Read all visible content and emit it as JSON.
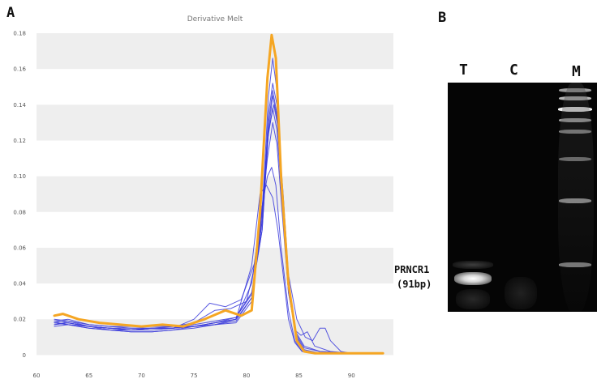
{
  "figure": {
    "panel_a_letter": "A",
    "panel_b_letter": "B"
  },
  "chart_data": {
    "type": "line",
    "title": "Derivative Melt",
    "xlabel": "",
    "ylabel": "",
    "xlim": [
      60,
      94
    ],
    "ylim": [
      -0.003,
      0.185
    ],
    "x_ticks": [
      "60",
      "65",
      "70",
      "75",
      "80",
      "85",
      "90"
    ],
    "x_tick_values": [
      60,
      65,
      70,
      75,
      80,
      85,
      90
    ],
    "y_ticks": [
      "0.18",
      "0.16",
      "0.14",
      "0.12",
      "0.10",
      "0.08",
      "0.06",
      "0.04",
      "0.02",
      "0"
    ],
    "y_tick_values": [
      0.18,
      0.16,
      0.14,
      0.12,
      0.1,
      0.08,
      0.06,
      0.04,
      0.02,
      0
    ],
    "grid": "alternating horizontal bands",
    "colors": {
      "samples": "#3b3bdc",
      "highlight": "#f5a623",
      "band": "#eeeeee"
    },
    "series": [
      {
        "color": "#f5a623",
        "highlight": true,
        "x": [
          61.7,
          62.5,
          64,
          66,
          68,
          70,
          72,
          74,
          76,
          78,
          79.5,
          80.5,
          81.3,
          82,
          82.4,
          82.8,
          83.3,
          84,
          84.8,
          85.5,
          86.5,
          88,
          90,
          93
        ],
        "y": [
          0.022,
          0.023,
          0.02,
          0.018,
          0.017,
          0.016,
          0.017,
          0.016,
          0.02,
          0.025,
          0.022,
          0.025,
          0.08,
          0.155,
          0.179,
          0.166,
          0.1,
          0.04,
          0.008,
          0.002,
          0.001,
          0.001,
          0.001,
          0.001
        ]
      },
      {
        "color": "#3b3bdc",
        "x": [
          61.7,
          63,
          65,
          67,
          69,
          71,
          73,
          75,
          77,
          79,
          80.5,
          81.5,
          82.1,
          82.5,
          82.9,
          83.4,
          84,
          84.7,
          85.5,
          87,
          90,
          93
        ],
        "y": [
          0.019,
          0.02,
          0.017,
          0.016,
          0.016,
          0.016,
          0.016,
          0.016,
          0.017,
          0.018,
          0.03,
          0.08,
          0.145,
          0.166,
          0.148,
          0.095,
          0.04,
          0.01,
          0.002,
          0.001,
          0.001,
          0.001
        ]
      },
      {
        "color": "#3b3bdc",
        "x": [
          61.7,
          63,
          65,
          67,
          69,
          71,
          73,
          75,
          77,
          79,
          80.5,
          81.5,
          82.1,
          82.5,
          82.9,
          83.4,
          84,
          84.7,
          85.5,
          87,
          90,
          93
        ],
        "y": [
          0.018,
          0.019,
          0.016,
          0.015,
          0.014,
          0.015,
          0.015,
          0.016,
          0.017,
          0.019,
          0.032,
          0.075,
          0.135,
          0.152,
          0.14,
          0.092,
          0.038,
          0.01,
          0.002,
          0.001,
          0.001,
          0.001
        ]
      },
      {
        "color": "#3b3bdc",
        "x": [
          61.7,
          63,
          65,
          67,
          69,
          71,
          73,
          75,
          77,
          79,
          80.5,
          81.5,
          82.1,
          82.5,
          82.9,
          83.4,
          84,
          84.7,
          85.5,
          87,
          90,
          93
        ],
        "y": [
          0.017,
          0.018,
          0.016,
          0.015,
          0.014,
          0.015,
          0.015,
          0.017,
          0.019,
          0.021,
          0.034,
          0.07,
          0.125,
          0.145,
          0.133,
          0.09,
          0.037,
          0.011,
          0.003,
          0.001,
          0.001,
          0.001
        ]
      },
      {
        "color": "#3b3bdc",
        "x": [
          61.7,
          63,
          65,
          67,
          69,
          71,
          73,
          75,
          77,
          78.5,
          80,
          81.2,
          82,
          82.5,
          82.9,
          83.4,
          84,
          84.7,
          85.5,
          87,
          90,
          93
        ],
        "y": [
          0.02,
          0.019,
          0.017,
          0.016,
          0.015,
          0.015,
          0.016,
          0.018,
          0.025,
          0.026,
          0.03,
          0.06,
          0.12,
          0.138,
          0.126,
          0.085,
          0.035,
          0.012,
          0.004,
          0.002,
          0.001,
          0.001
        ]
      },
      {
        "color": "#3b3bdc",
        "x": [
          61.7,
          63,
          65,
          67,
          69,
          71,
          73,
          75,
          76.5,
          78,
          79.5,
          81,
          82,
          82.5,
          82.9,
          83.4,
          84,
          84.7,
          85.5,
          87,
          90,
          93
        ],
        "y": [
          0.018,
          0.017,
          0.015,
          0.014,
          0.014,
          0.014,
          0.015,
          0.02,
          0.029,
          0.027,
          0.031,
          0.055,
          0.11,
          0.13,
          0.118,
          0.08,
          0.035,
          0.013,
          0.005,
          0.002,
          0.001,
          0.001
        ]
      },
      {
        "color": "#3b3bdc",
        "x": [
          61.7,
          63,
          65,
          67,
          69,
          71,
          73,
          75,
          77,
          79,
          80.5,
          81.4,
          82,
          82.4,
          82.8,
          83.3,
          84,
          84.6,
          85.3,
          87,
          90,
          93
        ],
        "y": [
          0.016,
          0.017,
          0.015,
          0.014,
          0.013,
          0.013,
          0.014,
          0.015,
          0.017,
          0.02,
          0.04,
          0.08,
          0.1,
          0.105,
          0.095,
          0.06,
          0.025,
          0.008,
          0.002,
          0.001,
          0.001,
          0.001
        ]
      },
      {
        "color": "#3b3bdc",
        "x": [
          61.7,
          63,
          65,
          67,
          69,
          71,
          73,
          75,
          77,
          79,
          80.5,
          81.3,
          81.9,
          82.5,
          83,
          83.5,
          84,
          84.6,
          85.3,
          87,
          90,
          93
        ],
        "y": [
          0.017,
          0.018,
          0.016,
          0.014,
          0.013,
          0.013,
          0.014,
          0.016,
          0.018,
          0.02,
          0.05,
          0.09,
          0.095,
          0.088,
          0.07,
          0.045,
          0.02,
          0.007,
          0.002,
          0.001,
          0.001,
          0.001
        ]
      },
      {
        "color": "#3b3bdc",
        "x": [
          61.7,
          63,
          65,
          67,
          69,
          71,
          73,
          75,
          77,
          79,
          80.5,
          81.5,
          82.1,
          82.6,
          83,
          83.5,
          84,
          84.8,
          85.6,
          86.3,
          87,
          87.5,
          88,
          89,
          90,
          93
        ],
        "y": [
          0.019,
          0.018,
          0.016,
          0.015,
          0.015,
          0.015,
          0.015,
          0.016,
          0.018,
          0.021,
          0.035,
          0.07,
          0.125,
          0.14,
          0.128,
          0.09,
          0.045,
          0.02,
          0.01,
          0.008,
          0.015,
          0.015,
          0.008,
          0.002,
          0.001,
          0.001
        ]
      },
      {
        "color": "#3b3bdc",
        "x": [
          61.7,
          63,
          65,
          67,
          69,
          71,
          73,
          75,
          77,
          79,
          80.5,
          81.5,
          82.1,
          82.5,
          82.9,
          83.4,
          84,
          84.6,
          85.2,
          85.8,
          86.5,
          88,
          90,
          93
        ],
        "y": [
          0.018,
          0.017,
          0.016,
          0.015,
          0.014,
          0.015,
          0.015,
          0.016,
          0.018,
          0.02,
          0.032,
          0.075,
          0.13,
          0.148,
          0.135,
          0.092,
          0.04,
          0.014,
          0.011,
          0.013,
          0.005,
          0.002,
          0.001,
          0.001
        ]
      }
    ]
  },
  "gel": {
    "lane_labels": [
      "T",
      "C",
      "M"
    ],
    "band_label_line1": "PRNCR1",
    "band_label_line2": "(91bp)"
  }
}
